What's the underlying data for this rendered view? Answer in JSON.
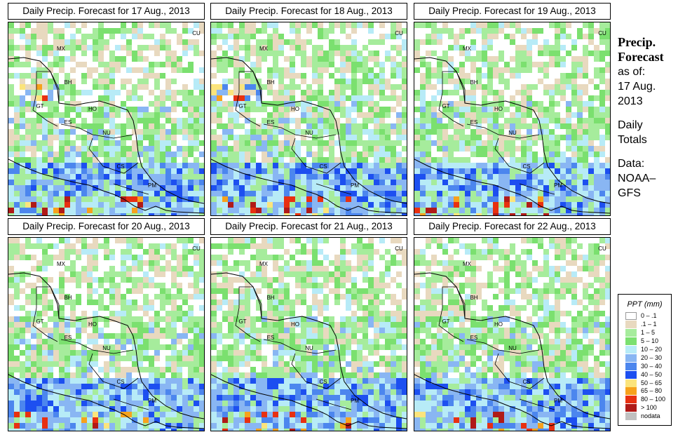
{
  "panels": [
    {
      "title": "Daily Precip. Forecast for  17 Aug., 2013",
      "seed": 17
    },
    {
      "title": "Daily Precip. Forecast for  18 Aug., 2013",
      "seed": 18
    },
    {
      "title": "Daily Precip. Forecast for  19 Aug., 2013",
      "seed": 19
    },
    {
      "title": "Daily Precip. Forecast for  20 Aug., 2013",
      "seed": 20
    },
    {
      "title": "Daily Precip. Forecast for  21 Aug., 2013",
      "seed": 21
    },
    {
      "title": "Daily Precip. Forecast for  22 Aug., 2013",
      "seed": 22
    }
  ],
  "map_labels": [
    "CU",
    "MX",
    "BH",
    "GT",
    "HO",
    "ES",
    "NU",
    "CS",
    "PM"
  ],
  "sidebar": {
    "title_line1": "Precip.",
    "title_line2": "Forecast",
    "asof_line1": "as of:",
    "asof_line2": "17 Aug.",
    "asof_line3": "2013",
    "totals_line1": "Daily",
    "totals_line2": "Totals",
    "data_line1": "Data:",
    "data_line2": "NOAA–",
    "data_line3": "GFS"
  },
  "legend": {
    "title": "PPT (mm)",
    "items": [
      {
        "label": "0 – .1",
        "color": "#ffffff"
      },
      {
        "label": ".1 – 1",
        "color": "#e8d9bf"
      },
      {
        "label": "1 – 5",
        "color": "#a6ec9c"
      },
      {
        "label": "5 – 10",
        "color": "#7be06f"
      },
      {
        "label": "10 – 20",
        "color": "#b7ebf7"
      },
      {
        "label": "20 – 30",
        "color": "#89b6f3"
      },
      {
        "label": "30 – 40",
        "color": "#4c86ee"
      },
      {
        "label": "40 – 50",
        "color": "#1d4ff0"
      },
      {
        "label": "50 – 65",
        "color": "#fbe47c"
      },
      {
        "label": "65 – 80",
        "color": "#f7a21c"
      },
      {
        "label": "80 – 100",
        "color": "#e83010"
      },
      {
        "label": "> 100",
        "color": "#b01a18"
      },
      {
        "label": "nodata",
        "color": "#c0c0c0"
      }
    ]
  }
}
